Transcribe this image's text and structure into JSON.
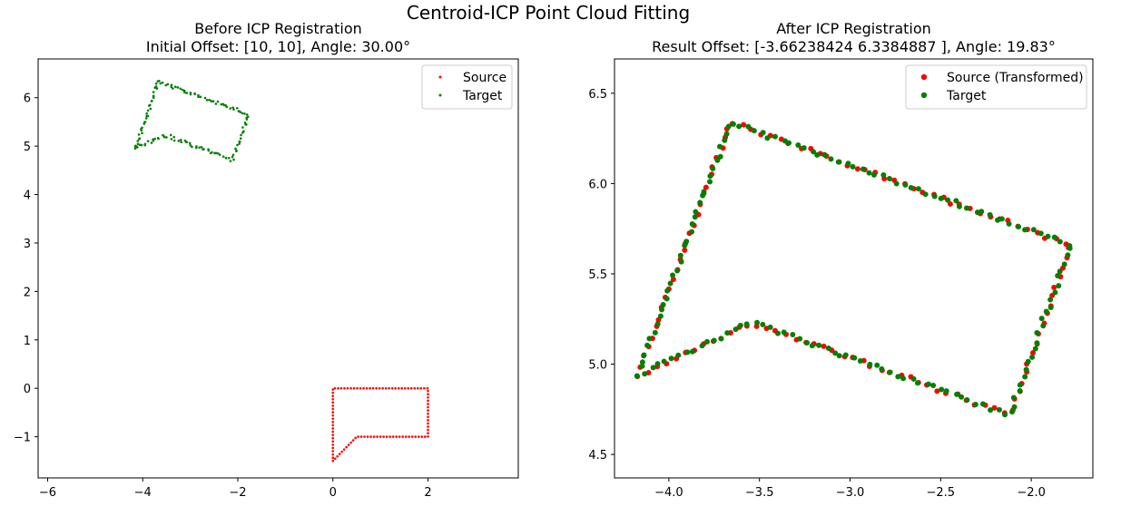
{
  "figure_title": "Centroid-ICP Point Cloud Fitting",
  "colors": {
    "source": "#ff0000",
    "target": "#008000",
    "axes": "#000000",
    "legend_border": "#cccccc"
  },
  "chart_data": [
    {
      "type": "scatter",
      "title": "Before ICP Registration\nInitial Offset: [10, 10], Angle: 30.00°",
      "xlim": [
        -6.2,
        3.9
      ],
      "ylim": [
        -1.85,
        6.8
      ],
      "xticks": [
        -6,
        -4,
        -2,
        0,
        2
      ],
      "xtick_labels": [
        "−6",
        "−4",
        "−2",
        "0",
        "2"
      ],
      "yticks": [
        -1,
        0,
        1,
        2,
        3,
        4,
        5,
        6
      ],
      "ytick_labels": [
        "−1",
        "0",
        "1",
        "2",
        "3",
        "4",
        "5",
        "6"
      ],
      "legend_position": "top-right",
      "grid": false,
      "series": [
        {
          "name": "Source",
          "color": "#ff0000",
          "vertices": [
            [
              0,
              -1.5
            ],
            [
              0,
              0
            ],
            [
              2,
              0
            ],
            [
              2,
              -1
            ],
            [
              0.5,
              -1
            ],
            [
              0,
              -1.5
            ]
          ]
        },
        {
          "name": "Target",
          "color": "#008000",
          "vertices": [
            [
              -4.17,
              4.94
            ],
            [
              -3.66,
              6.34
            ],
            [
              -1.78,
              5.66
            ],
            [
              -2.12,
              4.72
            ],
            [
              -3.54,
              5.23
            ],
            [
              -4.17,
              4.94
            ]
          ]
        }
      ]
    },
    {
      "type": "scatter",
      "title": "After ICP Registration\nResult Offset: [-3.66238424  6.3384887 ], Angle: 19.83°",
      "xlim": [
        -4.3,
        -1.66
      ],
      "ylim": [
        4.37,
        6.69
      ],
      "xticks": [
        -4.0,
        -3.5,
        -3.0,
        -2.5,
        -2.0
      ],
      "xtick_labels": [
        "−4.0",
        "−3.5",
        "−3.0",
        "−2.5",
        "−2.0"
      ],
      "yticks": [
        4.5,
        5.0,
        5.5,
        6.0,
        6.5
      ],
      "ytick_labels": [
        "4.5",
        "5.0",
        "5.5",
        "6.0",
        "6.5"
      ],
      "legend_position": "top-right",
      "grid": false,
      "series": [
        {
          "name": "Source (Transformed)",
          "color": "#ff0000",
          "vertices": [
            [
              -4.17,
              4.94
            ],
            [
              -3.66,
              6.34
            ],
            [
              -1.78,
              5.66
            ],
            [
              -2.12,
              4.72
            ],
            [
              -3.54,
              5.23
            ],
            [
              -4.17,
              4.94
            ]
          ]
        },
        {
          "name": "Target",
          "color": "#008000",
          "vertices": [
            [
              -4.17,
              4.94
            ],
            [
              -3.66,
              6.34
            ],
            [
              -1.78,
              5.66
            ],
            [
              -2.12,
              4.72
            ],
            [
              -3.54,
              5.23
            ],
            [
              -4.17,
              4.94
            ]
          ]
        }
      ]
    }
  ]
}
